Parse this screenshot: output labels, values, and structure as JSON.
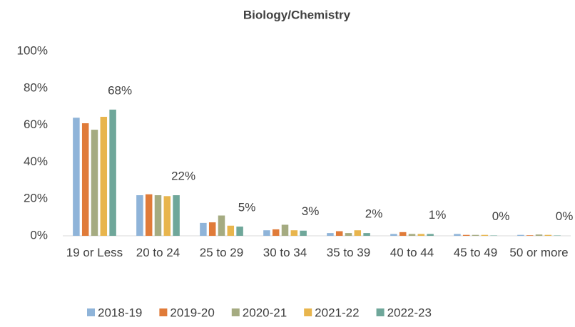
{
  "chart_data": {
    "type": "bar",
    "title": "Biology/Chemistry",
    "categories": [
      "19 or Less",
      "20 to 24",
      "25 to 29",
      "30 to 34",
      "35 to 39",
      "40 to 44",
      "45 to 49",
      "50 or more"
    ],
    "series": [
      {
        "name": "2018-19",
        "color": "#8fb4d9",
        "values": [
          64,
          22,
          7,
          3,
          1.5,
          1,
          1,
          0.5
        ]
      },
      {
        "name": "2019-20",
        "color": "#e07b39",
        "values": [
          61,
          22.5,
          7.3,
          3.5,
          2.5,
          2,
          0.5,
          0.3
        ]
      },
      {
        "name": "2020-21",
        "color": "#a5ab81",
        "values": [
          57.5,
          22,
          11,
          6,
          1.5,
          1,
          0.5,
          0.7
        ]
      },
      {
        "name": "2021-22",
        "color": "#e8b54d",
        "values": [
          64.5,
          21.5,
          5.5,
          3,
          3,
          1,
          0.5,
          0.5
        ]
      },
      {
        "name": "2022-23",
        "color": "#6fa79a",
        "values": [
          68.4,
          22,
          5,
          2.8,
          1.5,
          1,
          0.2,
          0.2
        ],
        "value_labels": [
          "68%",
          "22%",
          "5%",
          "3%",
          "2%",
          "1%",
          "0%",
          "0%"
        ]
      }
    ],
    "ylim": [
      0,
      100
    ],
    "yticks": [
      {
        "value": 0,
        "label": "0%"
      },
      {
        "value": 20,
        "label": "20%"
      },
      {
        "value": 40,
        "label": "40%"
      },
      {
        "value": 60,
        "label": "60%"
      },
      {
        "value": 80,
        "label": "80%"
      },
      {
        "value": 100,
        "label": "100%"
      }
    ],
    "grid": false,
    "legend": "bottom"
  }
}
